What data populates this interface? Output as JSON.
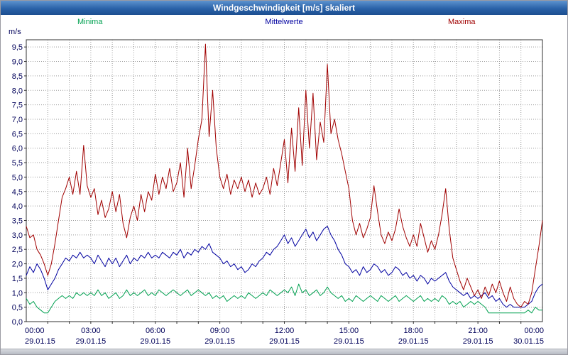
{
  "window": {
    "title": "Windgeschwindigkeit [m/s] skaliert"
  },
  "chart_data": {
    "type": "line",
    "title": "Windgeschwindigkeit [m/s] skaliert",
    "ylabel": "m/s",
    "ylim": [
      0,
      9.75
    ],
    "ytick_max": 9.5,
    "ytick_step": 0.5,
    "decimal_comma": true,
    "grid": "dotted",
    "legend_position": "top",
    "x_hours": 24,
    "xticks": [
      {
        "hour": 0,
        "time": "00:00",
        "date": "29.01.15"
      },
      {
        "hour": 3,
        "time": "03:00",
        "date": "29.01.15"
      },
      {
        "hour": 6,
        "time": "06:00",
        "date": "29.01.15"
      },
      {
        "hour": 9,
        "time": "09:00",
        "date": "29.01.15"
      },
      {
        "hour": 12,
        "time": "12:00",
        "date": "29.01.15"
      },
      {
        "hour": 15,
        "time": "15:00",
        "date": "29.01.15"
      },
      {
        "hour": 18,
        "time": "18:00",
        "date": "29.01.15"
      },
      {
        "hour": 21,
        "time": "21:00",
        "date": "29.01.15"
      },
      {
        "hour": 24,
        "time": "00:00",
        "date": "30.01.15"
      }
    ],
    "series": [
      {
        "name": "Minima",
        "color": "#00a050",
        "values": [
          0.8,
          0.6,
          0.7,
          0.5,
          0.4,
          0.3,
          0.3,
          0.5,
          0.7,
          0.8,
          0.9,
          0.8,
          0.9,
          0.8,
          1.0,
          0.9,
          1.0,
          0.9,
          1.0,
          0.9,
          1.1,
          0.9,
          1.0,
          0.8,
          0.9,
          1.0,
          0.8,
          0.9,
          1.1,
          0.9,
          1.0,
          0.9,
          1.0,
          1.1,
          0.9,
          1.0,
          0.9,
          1.1,
          1.0,
          0.9,
          1.0,
          1.1,
          1.0,
          0.9,
          1.0,
          1.1,
          0.9,
          1.0,
          1.1,
          1.0,
          0.9,
          1.0,
          0.8,
          0.9,
          0.8,
          0.9,
          0.7,
          0.8,
          0.9,
          0.8,
          0.9,
          0.8,
          1.0,
          0.9,
          0.8,
          0.9,
          1.0,
          0.9,
          1.1,
          1.0,
          0.9,
          1.0,
          1.1,
          1.0,
          1.2,
          0.9,
          1.3,
          1.0,
          1.1,
          0.9,
          1.0,
          1.1,
          0.9,
          1.0,
          1.2,
          1.0,
          0.9,
          0.8,
          0.9,
          0.7,
          0.8,
          0.7,
          0.9,
          0.8,
          0.7,
          0.8,
          0.9,
          0.8,
          0.7,
          0.9,
          0.8,
          0.7,
          0.8,
          0.9,
          0.7,
          0.8,
          0.9,
          0.8,
          0.7,
          0.8,
          0.9,
          0.7,
          0.8,
          0.7,
          0.8,
          0.7,
          0.9,
          0.8,
          0.6,
          0.7,
          0.6,
          0.7,
          0.5,
          0.6,
          0.7,
          0.6,
          0.7,
          0.6,
          0.5,
          0.3,
          0.3,
          0.3,
          0.3,
          0.3,
          0.3,
          0.3,
          0.3,
          0.3,
          0.3,
          0.3,
          0.4,
          0.3,
          0.5,
          0.4,
          0.4
        ]
      },
      {
        "name": "Mittelwerte",
        "color": "#0000a0",
        "values": [
          1.6,
          1.9,
          1.7,
          2.0,
          1.8,
          1.5,
          1.1,
          1.3,
          1.5,
          1.8,
          2.0,
          2.2,
          2.1,
          2.3,
          2.2,
          2.4,
          2.2,
          2.3,
          2.2,
          2.0,
          2.3,
          2.1,
          1.9,
          2.2,
          2.0,
          2.2,
          1.9,
          2.1,
          2.3,
          2.0,
          2.2,
          2.1,
          2.3,
          2.2,
          2.4,
          2.2,
          2.3,
          2.2,
          2.4,
          2.3,
          2.2,
          2.4,
          2.3,
          2.5,
          2.2,
          2.4,
          2.3,
          2.5,
          2.4,
          2.6,
          2.5,
          2.7,
          2.4,
          2.3,
          2.2,
          2.0,
          2.1,
          1.9,
          2.0,
          1.8,
          1.9,
          1.7,
          1.8,
          2.0,
          1.9,
          2.1,
          2.2,
          2.4,
          2.3,
          2.5,
          2.6,
          2.8,
          3.0,
          2.7,
          2.9,
          2.6,
          2.8,
          3.0,
          3.2,
          2.9,
          3.1,
          2.8,
          3.0,
          3.2,
          3.3,
          3.0,
          2.8,
          2.5,
          2.3,
          2.0,
          1.9,
          1.7,
          1.8,
          1.6,
          1.9,
          1.7,
          1.8,
          2.0,
          1.9,
          1.7,
          1.8,
          1.6,
          1.7,
          1.9,
          1.8,
          1.6,
          1.7,
          1.5,
          1.6,
          1.4,
          1.6,
          1.5,
          1.3,
          1.5,
          1.4,
          1.5,
          1.6,
          1.7,
          1.4,
          1.2,
          1.1,
          1.0,
          0.9,
          1.0,
          0.8,
          0.9,
          0.8,
          0.9,
          1.0,
          0.8,
          0.9,
          0.7,
          0.8,
          0.6,
          0.5,
          0.6,
          0.5,
          0.5,
          0.5,
          0.5,
          0.6,
          0.7,
          1.0,
          1.2,
          1.3
        ]
      },
      {
        "name": "Maxima",
        "color": "#a00000",
        "values": [
          3.3,
          2.9,
          3.0,
          2.5,
          2.3,
          2.0,
          1.6,
          2.0,
          2.7,
          3.5,
          4.3,
          4.6,
          5.0,
          4.4,
          5.2,
          4.4,
          6.1,
          4.7,
          4.3,
          4.6,
          3.7,
          4.2,
          3.6,
          3.9,
          4.5,
          3.8,
          4.4,
          3.4,
          2.9,
          3.6,
          4.0,
          3.5,
          4.4,
          3.8,
          4.5,
          4.2,
          5.1,
          4.4,
          5.0,
          4.6,
          5.3,
          4.5,
          4.8,
          5.5,
          4.3,
          6.0,
          4.6,
          5.4,
          6.3,
          7.0,
          9.6,
          6.4,
          8.0,
          6.0,
          5.0,
          4.6,
          5.1,
          4.4,
          4.9,
          4.6,
          5.0,
          4.5,
          4.9,
          4.3,
          4.8,
          4.4,
          4.6,
          5.0,
          4.4,
          5.3,
          4.7,
          5.5,
          6.3,
          4.8,
          6.7,
          5.2,
          7.4,
          5.4,
          8.0,
          6.0,
          7.9,
          5.6,
          6.9,
          6.2,
          8.9,
          6.5,
          7.0,
          6.3,
          5.8,
          5.2,
          4.6,
          3.5,
          3.0,
          3.4,
          2.9,
          3.2,
          3.6,
          4.7,
          3.8,
          3.0,
          2.7,
          3.1,
          2.8,
          3.2,
          3.9,
          3.3,
          2.9,
          2.6,
          3.0,
          2.6,
          3.4,
          2.9,
          2.4,
          2.8,
          2.5,
          3.0,
          3.7,
          4.6,
          3.2,
          2.2,
          1.8,
          1.4,
          1.1,
          1.5,
          1.2,
          0.9,
          1.1,
          0.8,
          1.2,
          0.9,
          1.3,
          1.0,
          1.4,
          1.0,
          0.7,
          1.2,
          0.8,
          0.6,
          0.5,
          0.7,
          0.6,
          1.0,
          1.8,
          2.6,
          3.5
        ]
      }
    ]
  }
}
